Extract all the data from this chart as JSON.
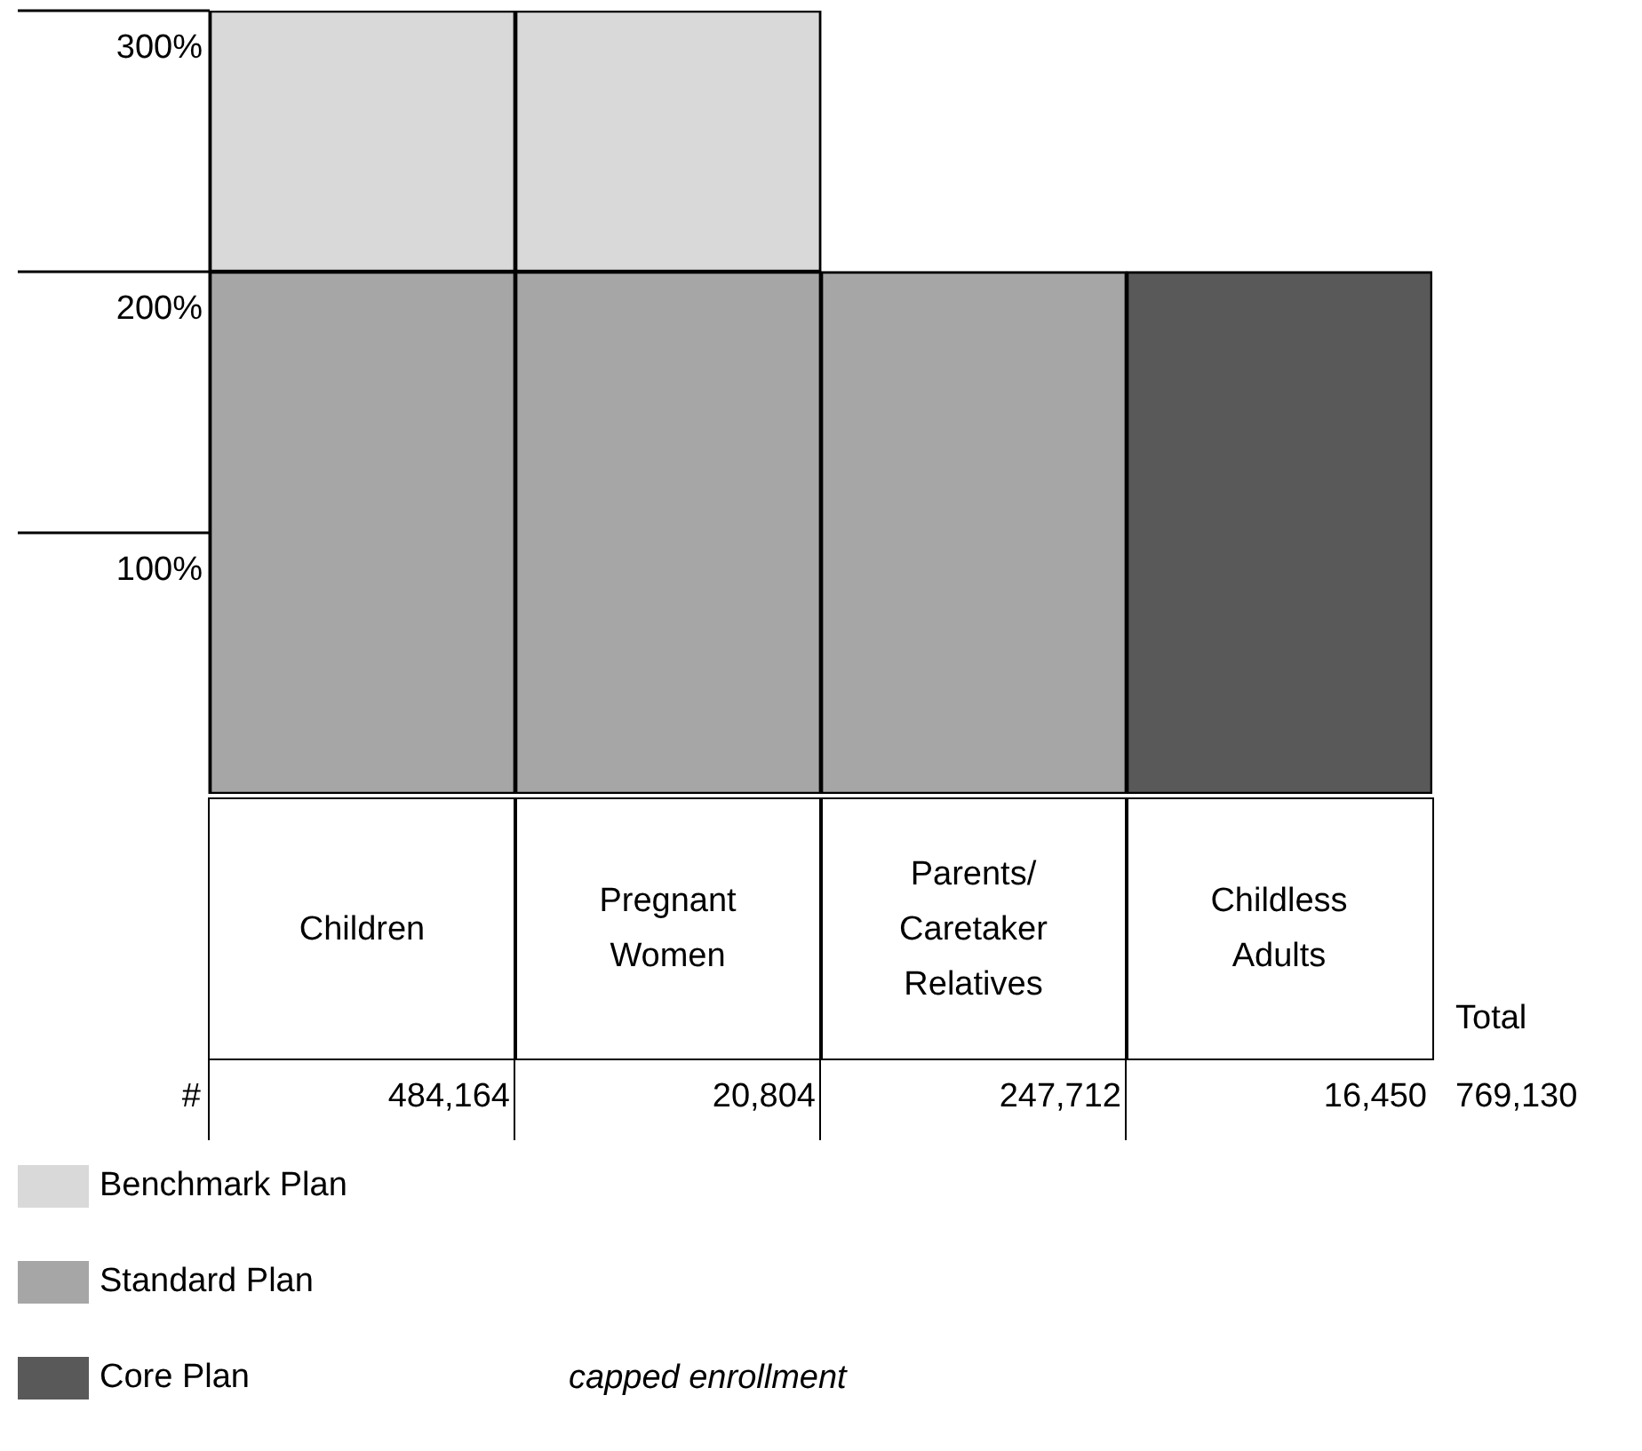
{
  "chart_data": {
    "type": "bar",
    "stacked": true,
    "categories": [
      "Children",
      "Pregnant Women",
      "Parents/ Caretaker Relatives",
      "Childless Adults"
    ],
    "series": [
      {
        "name": "Core Plan",
        "color": "#595959",
        "values": [
          null,
          null,
          null,
          200
        ]
      },
      {
        "name": "Standard Plan",
        "color": "#a6a6a6",
        "values": [
          200,
          200,
          200,
          null
        ]
      },
      {
        "name": "Benchmark Plan",
        "color": "#d9d9d9",
        "values": [
          100,
          100,
          null,
          null
        ]
      }
    ],
    "ylim": [
      0,
      300
    ],
    "yticks": [
      {
        "value": 100,
        "label": "100%"
      },
      {
        "value": 200,
        "label": "200%"
      },
      {
        "value": 300,
        "label": "300%"
      }
    ],
    "grid": false,
    "legend": "bottom left",
    "annotations": [
      "#",
      "484,164",
      "20,804",
      "247,712",
      "16,450",
      "Total",
      "769,130",
      "capped enrollment"
    ]
  }
}
